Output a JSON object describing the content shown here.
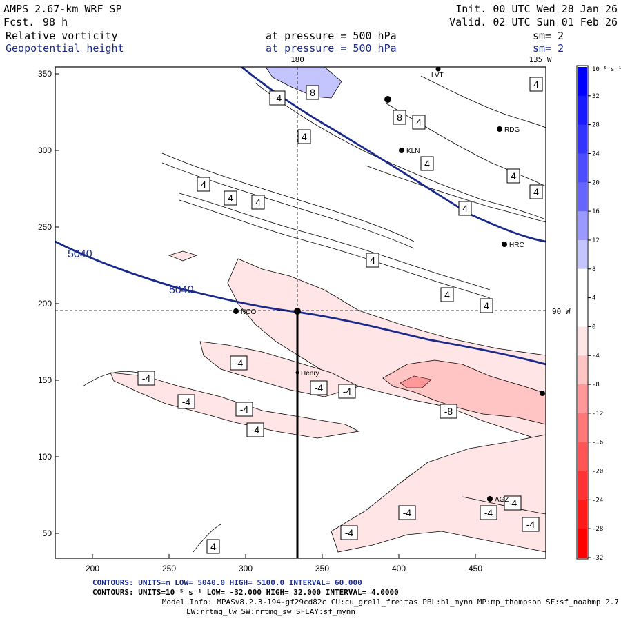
{
  "header": {
    "model": "AMPS 2.67-km WRF SP",
    "fcst_label": "Fcst.",
    "fcst_value": "98 h",
    "init": "Init. 00 UTC Wed 28 Jan 26",
    "valid": "Valid. 02 UTC Sun 01 Feb 26",
    "field1": "Relative vorticity",
    "field2": "Geopotential height",
    "pressure1": "at pressure =  500 hPa",
    "pressure2": "at pressure =  500 hPa",
    "sm1": "sm= 2",
    "sm2": "sm= 2"
  },
  "map_labels": {
    "lon_top": "180",
    "lon_right_top": "135 W",
    "lon_right_mid": "90 W"
  },
  "axes": {
    "x_ticks": [
      "200",
      "250",
      "300",
      "350",
      "400",
      "450"
    ],
    "y_ticks": [
      "350",
      "300",
      "250",
      "200",
      "150",
      "100",
      "50"
    ]
  },
  "height_contours": {
    "value_label": "5040",
    "color": "#1a2a8a"
  },
  "vorticity_labels": {
    "neg4": "-4",
    "pos4": "4",
    "pos8": "8",
    "neg8": "-8"
  },
  "stations": [
    "LVT",
    "RDG",
    "KLN",
    "HRC",
    "NCO",
    "Henry",
    "AGZ"
  ],
  "colorbar": {
    "unit": "10⁻⁵ s⁻¹",
    "labels": [
      "32",
      "28",
      "24",
      "20",
      "16",
      "12",
      "8",
      "4",
      "0",
      "-4",
      "-8",
      "-12",
      "-16",
      "-20",
      "-24",
      "-28",
      "-32"
    ],
    "colors": [
      "#0000ff",
      "#1a1aff",
      "#3333ff",
      "#4d4dff",
      "#6666ff",
      "#9999ff",
      "#c4c4ff",
      "#ffffff",
      "#ffffff",
      "#ffe5e5",
      "#ffc4c4",
      "#ff9999",
      "#ff7777",
      "#ff5555",
      "#ff3333",
      "#ff1a1a",
      "#ff0000"
    ]
  },
  "footer": {
    "contours1": "CONTOURS:  UNITS=m  LOW=  5040.0         HIGH=  5100.0          INTERVAL=   60.000",
    "contours2": "CONTOURS:  UNITS=10⁻⁵ s⁻¹  LOW=  -32.000       HIGH=  32.000       INTERVAL=   4.0000",
    "model_info": "Model Info: MPASv8.2.3-194-gf29cd82c CU:cu_grell_freitas PBL:bl_mynn MP:mp_thompson SF:sf_noahmp 2.7",
    "model_info2": "LW:rrtmg_lw SW:rrtmg_sw SFLAY:sf_mynn"
  }
}
